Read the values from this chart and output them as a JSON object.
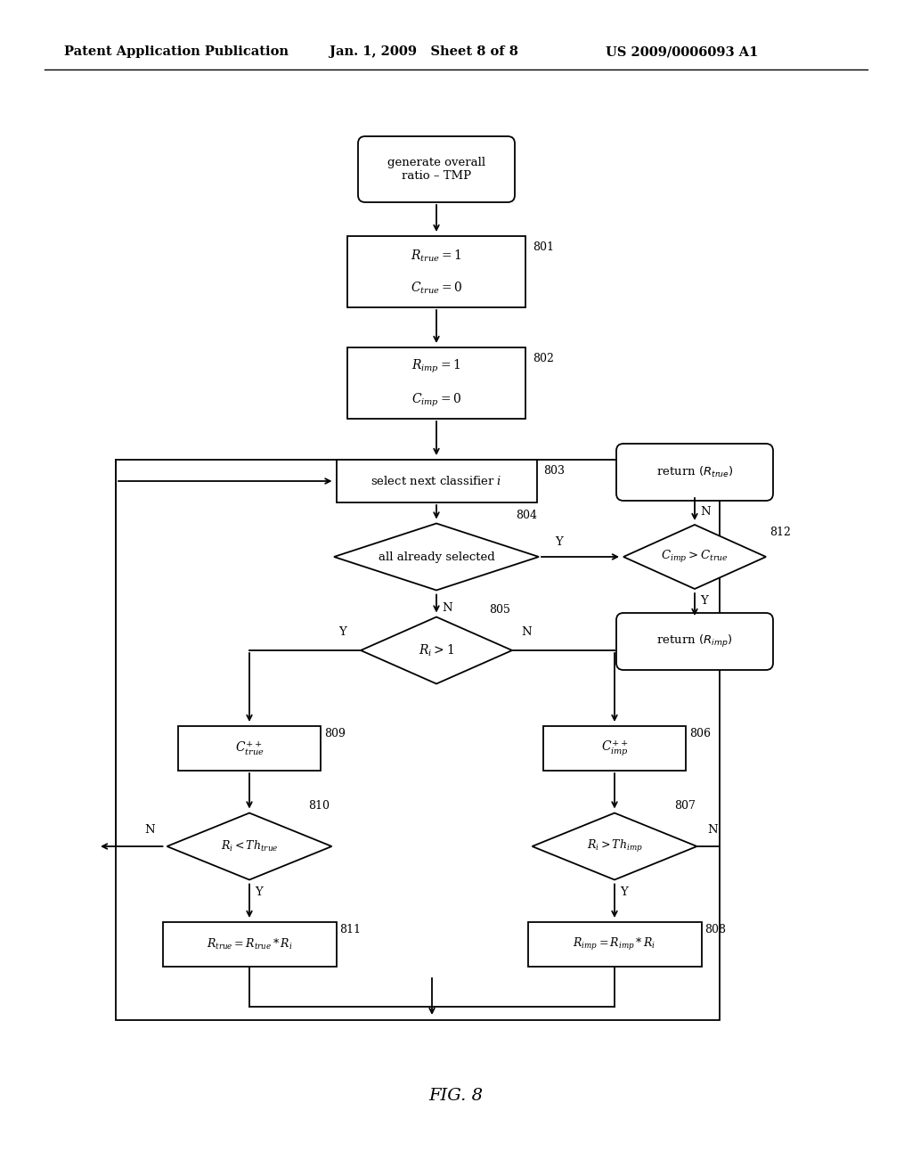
{
  "bg_color": "#ffffff",
  "header_left": "Patent Application Publication",
  "header_mid": "Jan. 1, 2009   Sheet 8 of 8",
  "header_right": "US 2009/0006093 A1",
  "fig_label": "FIG. 8"
}
